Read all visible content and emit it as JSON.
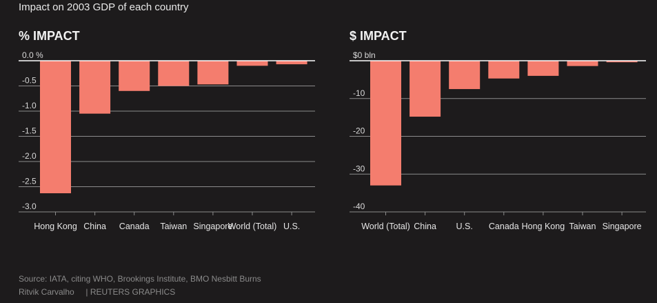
{
  "header": {
    "subtitle": "Impact on 2003 GDP of each country"
  },
  "colors": {
    "bar": "#f47d6e",
    "grid": "#8c8c8c",
    "baseline": "#ffffff",
    "background": "#1d1b1c"
  },
  "chart_data": [
    {
      "type": "bar",
      "title": "% IMPACT",
      "categories": [
        "Hong Kong",
        "China",
        "Canada",
        "Taiwan",
        "Singapore",
        "World (Total)",
        "U.S."
      ],
      "values": [
        -2.63,
        -1.05,
        -0.6,
        -0.5,
        -0.47,
        -0.1,
        -0.07
      ],
      "ylim": [
        -3.0,
        0.0
      ],
      "yticks": [
        0.0,
        -0.5,
        -1.0,
        -1.5,
        -2.0,
        -2.5,
        -3.0
      ],
      "ytick_labels": [
        "0.0 %",
        "-0.5",
        "-1.0",
        "-1.5",
        "-2.0",
        "-2.5",
        "-3.0"
      ],
      "grid": true
    },
    {
      "type": "bar",
      "title": "$ IMPACT",
      "categories": [
        "World (Total)",
        "China",
        "U.S.",
        "Canada",
        "Hong Kong",
        "Taiwan",
        "Singapore"
      ],
      "values": [
        -33,
        -14.8,
        -7.5,
        -4.7,
        -4.0,
        -1.4,
        -0.4
      ],
      "ylim": [
        -40,
        0
      ],
      "yticks": [
        0,
        -10,
        -20,
        -30,
        -40
      ],
      "ytick_labels": [
        "$0 bln",
        "-10",
        "-20",
        "-30",
        "-40"
      ],
      "grid": true
    }
  ],
  "footer": {
    "source": "Source: IATA, citing WHO, Brookings Institute, BMO Nesbitt Burns",
    "credit": "Ritvik Carvalho",
    "agency": "| REUTERS GRAPHICS"
  }
}
